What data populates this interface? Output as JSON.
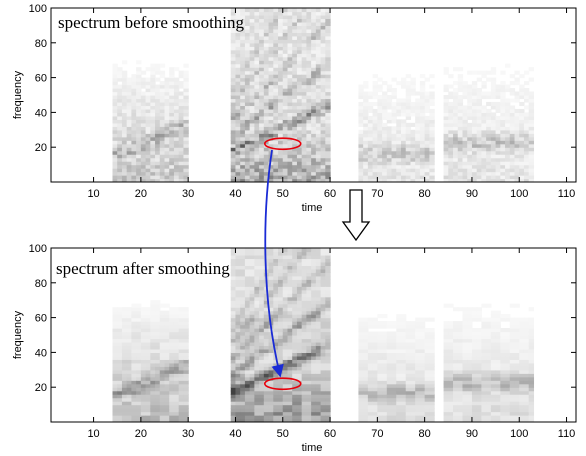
{
  "chart_data": [
    {
      "type": "heatmap",
      "title": "spectrum before smoothing",
      "xlabel": "time",
      "ylabel": "frequency",
      "xlim": [
        1,
        112
      ],
      "ylim": [
        0,
        100
      ],
      "xticks": [
        10,
        20,
        30,
        40,
        50,
        60,
        70,
        80,
        90,
        100,
        110
      ],
      "yticks": [
        20,
        40,
        60,
        80,
        100
      ],
      "colormap": "gray-reversed",
      "smoothed": false,
      "ellipse": {
        "cx": 50,
        "cy": 22,
        "rx": 3.8,
        "ry": 3.2,
        "color": "#e8000b"
      }
    },
    {
      "type": "heatmap",
      "title": "spectrum after smoothing",
      "xlabel": "time",
      "ylabel": "frequency",
      "xlim": [
        1,
        112
      ],
      "ylim": [
        0,
        100
      ],
      "xticks": [
        10,
        20,
        30,
        40,
        50,
        60,
        70,
        80,
        90,
        100,
        110
      ],
      "yticks": [
        20,
        40,
        60,
        80,
        100
      ],
      "colormap": "gray-reversed",
      "smoothed": true,
      "ellipse": {
        "cx": 50,
        "cy": 22,
        "rx": 3.8,
        "ry": 3.2,
        "color": "#e8000b"
      }
    }
  ],
  "annotations": {
    "curve_arrow_color": "#1a2bd6",
    "down_arrow": "hollow-down-arrow"
  }
}
